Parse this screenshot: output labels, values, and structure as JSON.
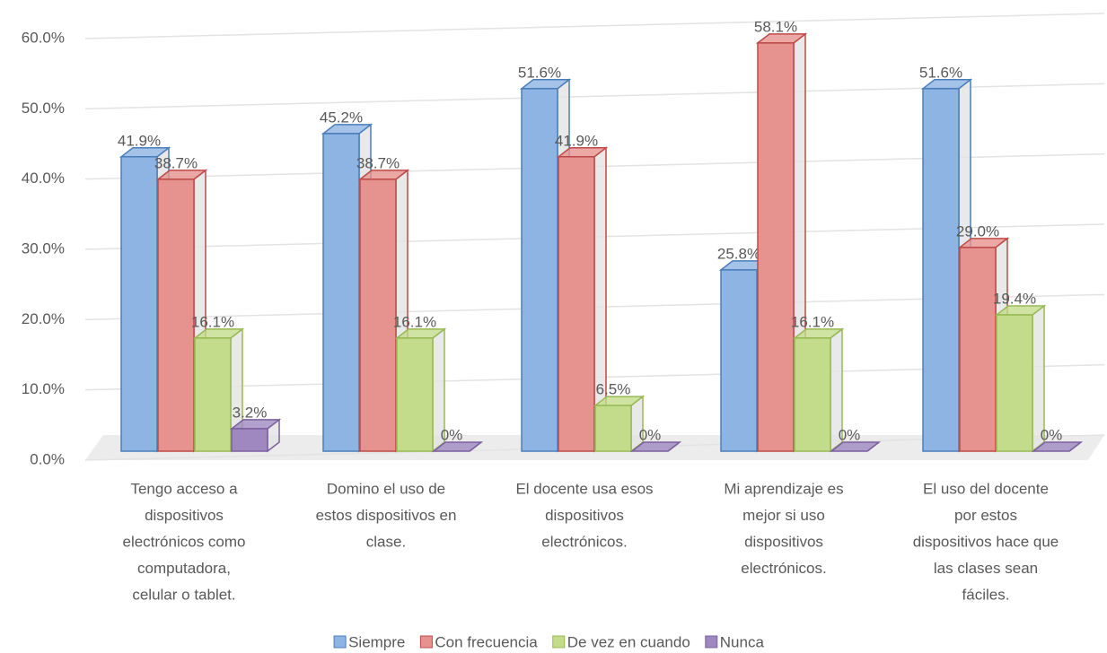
{
  "chart_data": {
    "type": "bar3d",
    "categories": [
      [
        "Tengo acceso a",
        "dispositivos",
        "electrónicos como",
        "computadora,",
        "celular o tablet."
      ],
      [
        "Domino el uso de",
        "estos dispositivos en",
        "clase."
      ],
      [
        "El docente usa esos",
        "dispositivos",
        "electrónicos."
      ],
      [
        "Mi aprendizaje es",
        "mejor si uso",
        "dispositivos",
        "electrónicos."
      ],
      [
        "El uso del docente",
        "por estos",
        "dispositivos hace que",
        "las clases sean",
        "fáciles."
      ]
    ],
    "series": [
      {
        "name": "Siempre",
        "color": "#8eb4e3",
        "stroke": "#4a7ebb",
        "values": [
          41.9,
          45.2,
          51.6,
          25.8,
          51.6
        ],
        "value_labels": [
          "41.9%",
          "45.2%",
          "51.6%",
          "25.8%",
          "51.6%"
        ]
      },
      {
        "name": "Con frecuencia",
        "color": "#e6928f",
        "stroke": "#be4b48",
        "values": [
          38.7,
          38.7,
          41.9,
          58.1,
          29.0
        ],
        "value_labels": [
          "38.7%",
          "38.7%",
          "41.9%",
          "58.1%",
          "29.0%"
        ]
      },
      {
        "name": "De vez en cuando",
        "color": "#c3dc8c",
        "stroke": "#98b954",
        "values": [
          16.1,
          16.1,
          6.5,
          16.1,
          19.4
        ],
        "value_labels": [
          "16.1%",
          "16.1%",
          "6.5%",
          "16.1%",
          "19.4%"
        ]
      },
      {
        "name": "Nunca",
        "color": "#9f88c0",
        "stroke": "#7d60a0",
        "values": [
          3.2,
          0,
          0,
          0,
          0
        ],
        "value_labels": [
          "3.2%",
          "0%",
          "0%",
          "0%",
          "0%"
        ]
      }
    ],
    "ylim": [
      0,
      60
    ],
    "yticks": [
      {
        "value": 0,
        "label": "0.0%"
      },
      {
        "value": 10,
        "label": "10.0%"
      },
      {
        "value": 20,
        "label": "20.0%"
      },
      {
        "value": 30,
        "label": "30.0%"
      },
      {
        "value": 40,
        "label": "40.0%"
      },
      {
        "value": 50,
        "label": "50.0%"
      },
      {
        "value": 60,
        "label": "60.0%"
      }
    ],
    "grid": true,
    "legend": "bottom"
  }
}
